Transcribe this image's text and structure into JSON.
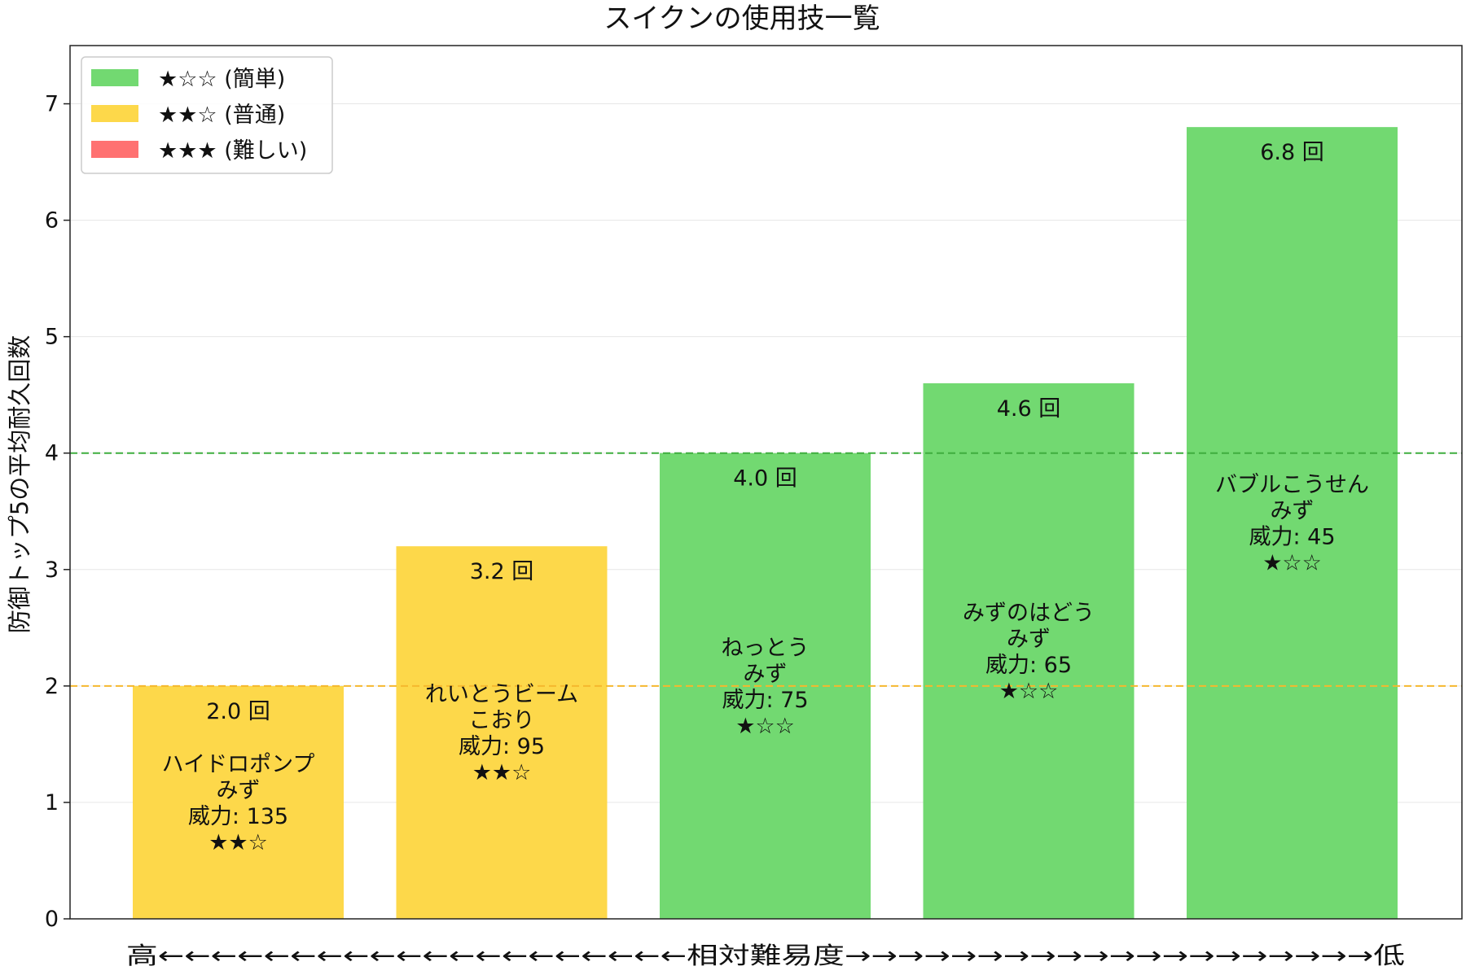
{
  "chart_data": {
    "type": "bar",
    "title": "スイクンの使用技一覧",
    "ylabel": "防御トップ5の平均耐久回数",
    "xlabel": "高←←←←←←←←←←←←←←←←←←←←相対難易度→→→→→→→→→→→→→→→→→→→→低",
    "ylim": [
      0,
      7.5
    ],
    "yticks": [
      "0",
      "1",
      "2",
      "3",
      "4",
      "5",
      "6",
      "7"
    ],
    "grid": true,
    "legend_position": "top-left",
    "legend": [
      {
        "label": "★☆☆ (簡単)",
        "color": "#72d971"
      },
      {
        "label": "★★☆ (普通)",
        "color": "#fdd84a"
      },
      {
        "label": "★★★ (難しい)",
        "color": "#ff7171"
      }
    ],
    "reference_lines": [
      {
        "y": 4,
        "color": "#3fae3f",
        "style": "dashed"
      },
      {
        "y": 2,
        "color": "#f5b82e",
        "style": "dashed"
      }
    ],
    "bars": [
      {
        "value": 2.0,
        "value_label": "2.0 回",
        "name": "ハイドロポンプ",
        "type": "みず",
        "power": "威力: 135",
        "stars": "★★☆",
        "color": "#fdd84a"
      },
      {
        "value": 3.2,
        "value_label": "3.2 回",
        "name": "れいとうビーム",
        "type": "こおり",
        "power": "威力: 95",
        "stars": "★★☆",
        "color": "#fdd84a"
      },
      {
        "value": 4.0,
        "value_label": "4.0 回",
        "name": "ねっとう",
        "type": "みず",
        "power": "威力: 75",
        "stars": "★☆☆",
        "color": "#72d971"
      },
      {
        "value": 4.6,
        "value_label": "4.6 回",
        "name": "みずのはどう",
        "type": "みず",
        "power": "威力: 65",
        "stars": "★☆☆",
        "color": "#72d971"
      },
      {
        "value": 6.8,
        "value_label": "6.8 回",
        "name": "バブルこうせん",
        "type": "みず",
        "power": "威力: 45",
        "stars": "★☆☆",
        "color": "#72d971"
      }
    ]
  }
}
